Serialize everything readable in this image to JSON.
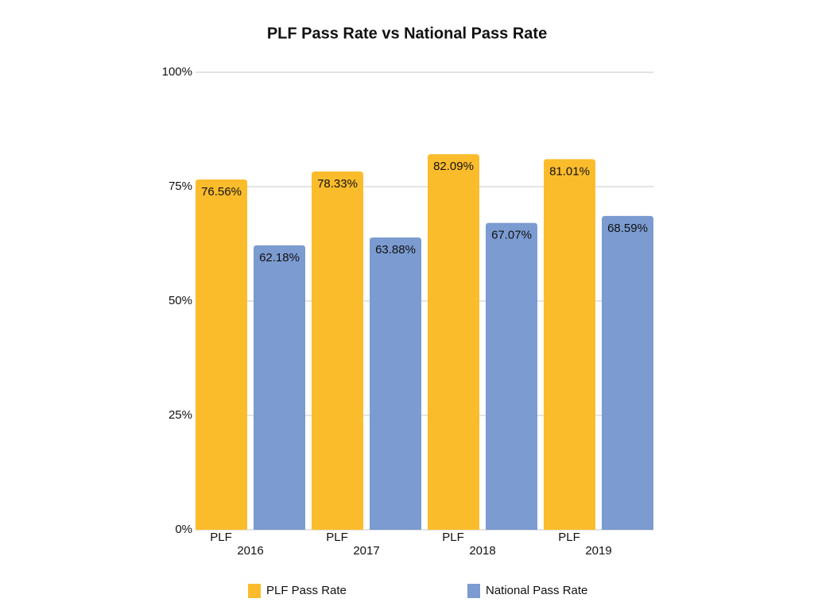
{
  "chart_data": {
    "type": "bar",
    "title": "PLF Pass Rate vs National Pass Rate",
    "categories": [
      "2016",
      "2017",
      "2018",
      "2019"
    ],
    "category_prefix": "PLF",
    "series": [
      {
        "name": "PLF Pass Rate",
        "color": "#fbbc2c",
        "values": [
          76.56,
          78.33,
          82.09,
          81.01
        ],
        "value_labels": [
          "76.56%",
          "78.33%",
          "82.09%",
          "81.01%"
        ]
      },
      {
        "name": "National Pass Rate",
        "color": "#7b9bd1",
        "values": [
          62.18,
          63.88,
          67.07,
          68.59
        ],
        "value_labels": [
          "62.18%",
          "63.88%",
          "67.07%",
          "68.59%"
        ]
      }
    ],
    "ylim": [
      0,
      100
    ],
    "yticks": [
      {
        "value": 0,
        "label": "0%"
      },
      {
        "value": 25,
        "label": "25%"
      },
      {
        "value": 50,
        "label": "50%"
      },
      {
        "value": 75,
        "label": "75%"
      },
      {
        "value": 100,
        "label": "100%"
      }
    ],
    "grid": true,
    "legend": "bottom"
  }
}
